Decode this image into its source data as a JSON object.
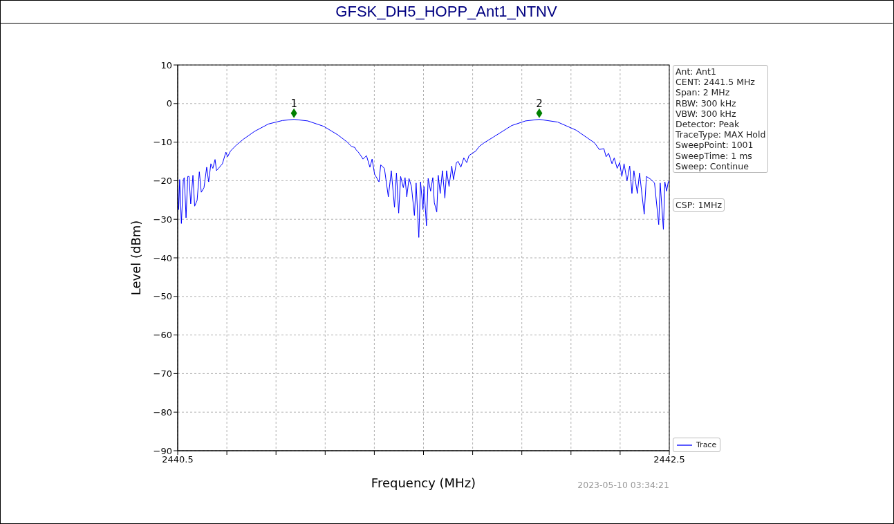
{
  "chart_data": {
    "type": "line",
    "title": "GFSK_DH5_HOPP_Ant1_NTNV",
    "xlabel": "Frequency (MHz)",
    "ylabel": "Level (dBm)",
    "xlim": [
      2440.5,
      2442.5
    ],
    "xticks": [
      {
        "value": 2440.5,
        "label": "2440.5"
      },
      {
        "value": 2440.7,
        "label": null
      },
      {
        "value": 2440.9,
        "label": null
      },
      {
        "value": 2441.1,
        "label": null
      },
      {
        "value": 2441.3,
        "label": null
      },
      {
        "value": 2441.5,
        "label": null
      },
      {
        "value": 2441.7,
        "label": null
      },
      {
        "value": 2441.9,
        "label": null
      },
      {
        "value": 2442.1,
        "label": null
      },
      {
        "value": 2442.3,
        "label": null
      },
      {
        "value": 2442.5,
        "label": "2442.5"
      }
    ],
    "ylim": [
      -90,
      10
    ],
    "yticks": [
      -90,
      -80,
      -70,
      -60,
      -50,
      -40,
      -30,
      -20,
      -10,
      0,
      10
    ],
    "grid": true,
    "legend": "bottom right",
    "line_style": "solid",
    "series": [
      {
        "name": "Trace",
        "color": "#0000ff",
        "marker": "none",
        "x": [
          2440.5,
          2440.504,
          2440.508,
          2440.515,
          2440.523,
          2440.527,
          2440.534,
          2440.541,
          2440.546,
          2440.553,
          2440.562,
          2440.569,
          2440.579,
          2440.588,
          2440.596,
          2440.607,
          2440.618,
          2440.626,
          2440.635,
          2440.643,
          2440.652,
          2440.658,
          2440.682,
          2440.696,
          2440.703,
          2440.715,
          2440.738,
          2440.766,
          2440.813,
          2440.869,
          2440.926,
          2440.973,
          2441.029,
          2441.094,
          2441.151,
          2441.188,
          2441.207,
          2441.221,
          2441.226,
          2441.235,
          2441.245,
          2441.254,
          2441.268,
          2441.282,
          2441.291,
          2441.301,
          2441.319,
          2441.326,
          2441.341,
          2441.357,
          2441.369,
          2441.382,
          2441.39,
          2441.399,
          2441.407,
          2441.418,
          2441.425,
          2441.432,
          2441.441,
          2441.451,
          2441.463,
          2441.47,
          2441.481,
          2441.488,
          2441.498,
          2441.502,
          2441.512,
          2441.519,
          2441.529,
          2441.538,
          2441.544,
          2441.554,
          2441.56,
          2441.568,
          2441.577,
          2441.587,
          2441.594,
          2441.604,
          2441.615,
          2441.622,
          2441.634,
          2441.641,
          2441.652,
          2441.664,
          2441.676,
          2441.685,
          2441.699,
          2441.713,
          2441.727,
          2441.746,
          2441.784,
          2441.859,
          2441.915,
          2441.971,
          2442.046,
          2442.121,
          2442.196,
          2442.215,
          2442.234,
          2442.243,
          2442.253,
          2442.267,
          2442.276,
          2442.288,
          2442.298,
          2442.307,
          2442.316,
          2442.328,
          2442.339,
          2442.348,
          2442.356,
          2442.37,
          2442.379,
          2442.398,
          2442.407,
          2442.426,
          2442.44,
          2442.457,
          2442.463,
          2442.476,
          2442.482,
          2442.489,
          2442.496,
          2442.5
        ],
        "values": [
          -21.5,
          -27.5,
          -19.7,
          -31.1,
          -19.7,
          -19.2,
          -29.6,
          -18.9,
          -18.9,
          -26.0,
          -18.6,
          -26.6,
          -25.1,
          -17.7,
          -23.0,
          -21.8,
          -16.5,
          -20.3,
          -15.6,
          -16.8,
          -14.5,
          -17.4,
          -15.6,
          -12.6,
          -13.8,
          -12.3,
          -10.8,
          -9.3,
          -7.2,
          -5.3,
          -4.4,
          -4.1,
          -4.5,
          -5.9,
          -8.1,
          -9.9,
          -11.1,
          -11.4,
          -12.0,
          -12.6,
          -13.5,
          -14.4,
          -13.5,
          -16.5,
          -14.4,
          -18.3,
          -20.3,
          -15.9,
          -16.8,
          -24.2,
          -17.4,
          -26.9,
          -18.0,
          -28.4,
          -18.9,
          -21.8,
          -19.2,
          -24.2,
          -19.4,
          -21.5,
          -29.0,
          -20.6,
          -34.7,
          -20.3,
          -27.5,
          -21.5,
          -31.7,
          -19.4,
          -22.7,
          -19.2,
          -25.7,
          -28.1,
          -18.6,
          -23.3,
          -17.4,
          -24.5,
          -17.4,
          -21.5,
          -16.2,
          -19.7,
          -15.3,
          -15.0,
          -16.5,
          -14.1,
          -15.3,
          -13.5,
          -12.9,
          -12.3,
          -11.1,
          -10.2,
          -8.7,
          -5.7,
          -4.5,
          -4.1,
          -4.8,
          -6.9,
          -10.2,
          -11.9,
          -11.7,
          -13.8,
          -12.9,
          -15.6,
          -14.1,
          -16.8,
          -15.3,
          -18.9,
          -15.6,
          -20.0,
          -16.2,
          -23.3,
          -17.4,
          -23.3,
          -18.0,
          -28.7,
          -18.9,
          -19.7,
          -20.6,
          -31.4,
          -20.6,
          -32.6,
          -20.3,
          -22.7,
          -20.3,
          -20.0
        ]
      },
      {
        "type": "scatter",
        "color": "#008000",
        "marker": "diamond",
        "x": [
          2440.973,
          2441.971
        ],
        "values": [
          -2.5,
          -2.5
        ]
      }
    ],
    "annotations": [
      {
        "text": "1",
        "x": 2440.973,
        "y": -2.5
      },
      {
        "text": "2",
        "x": 2441.971,
        "y": -2.5
      },
      "Ant: Ant1\nCENT: 2441.5 MHz\nSpan: 2 MHz\nRBW: 300 kHz\nVBW: 300 kHz\nDetector: Peak\nTraceType: MAX Hold\nSweepPoint: 1001\nSweepTime: 1 ms\nSweep: Continue",
      "CSP: 1MHz",
      "2023-05-10 03:34:21"
    ]
  }
}
